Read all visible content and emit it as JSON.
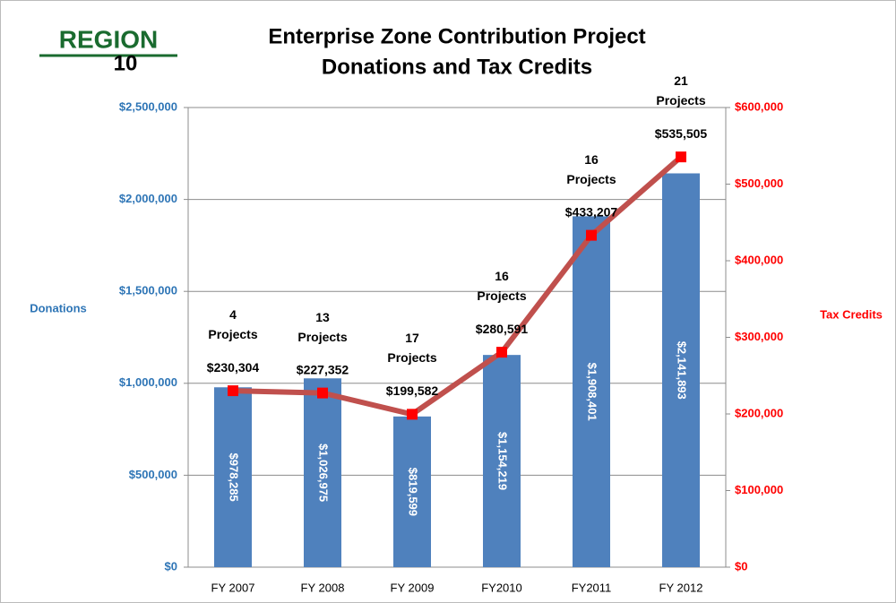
{
  "chart_data": {
    "type": "bar_line",
    "logo": {
      "top": "REGION",
      "bottom": "10"
    },
    "title": "Enterprise Zone Contribution Project",
    "subtitle": "Donations and Tax Credits",
    "y_label": "Donations",
    "y2_label": "Tax Credits",
    "categories": [
      "FY 2007",
      "FY 2008",
      "FY 2009",
      "FY2010",
      "FY2011",
      "FY 2012"
    ],
    "series": [
      {
        "name": "Donations",
        "type": "bar",
        "color": "#4f81bd",
        "values": [
          978285,
          1026975,
          819599,
          1154219,
          1908401,
          2141893
        ],
        "value_labels": [
          "$978,285",
          "$1,026,975",
          "$819,599",
          "$1,154,219",
          "$1,908,401",
          "$2,141,893"
        ]
      },
      {
        "name": "Tax Credits",
        "type": "line",
        "axis": "y2",
        "color": "#c0504d",
        "marker_color": "#ff0000",
        "values": [
          230304,
          227352,
          199582,
          280591,
          433207,
          535505
        ],
        "value_labels": [
          "$230,304",
          "$227,352",
          "$199,582",
          "$280,591",
          "$433,207",
          "$535,505"
        ]
      }
    ],
    "annotations": [
      "4 Projects",
      "13 Projects",
      "17 Projects",
      "16 Projects",
      "16 Projects",
      "21 Projects"
    ],
    "ylim": [
      0,
      2500000
    ],
    "yticks": [
      {
        "value": 0,
        "label": "$0"
      },
      {
        "value": 500000,
        "label": "$500,000"
      },
      {
        "value": 1000000,
        "label": "$1,000,000"
      },
      {
        "value": 1500000,
        "label": "$1,500,000"
      },
      {
        "value": 2000000,
        "label": "$2,000,000"
      },
      {
        "value": 2500000,
        "label": "$2,500,000"
      }
    ],
    "y2lim": [
      0,
      600000
    ],
    "y2ticks": [
      {
        "value": 0,
        "label": "$0"
      },
      {
        "value": 100000,
        "label": "$100,000"
      },
      {
        "value": 200000,
        "label": "$200,000"
      },
      {
        "value": 300000,
        "label": "$300,000"
      },
      {
        "value": 400000,
        "label": "$400,000"
      },
      {
        "value": 500000,
        "label": "$500,000"
      },
      {
        "value": 600000,
        "label": "$600,000"
      }
    ],
    "grid": true
  }
}
